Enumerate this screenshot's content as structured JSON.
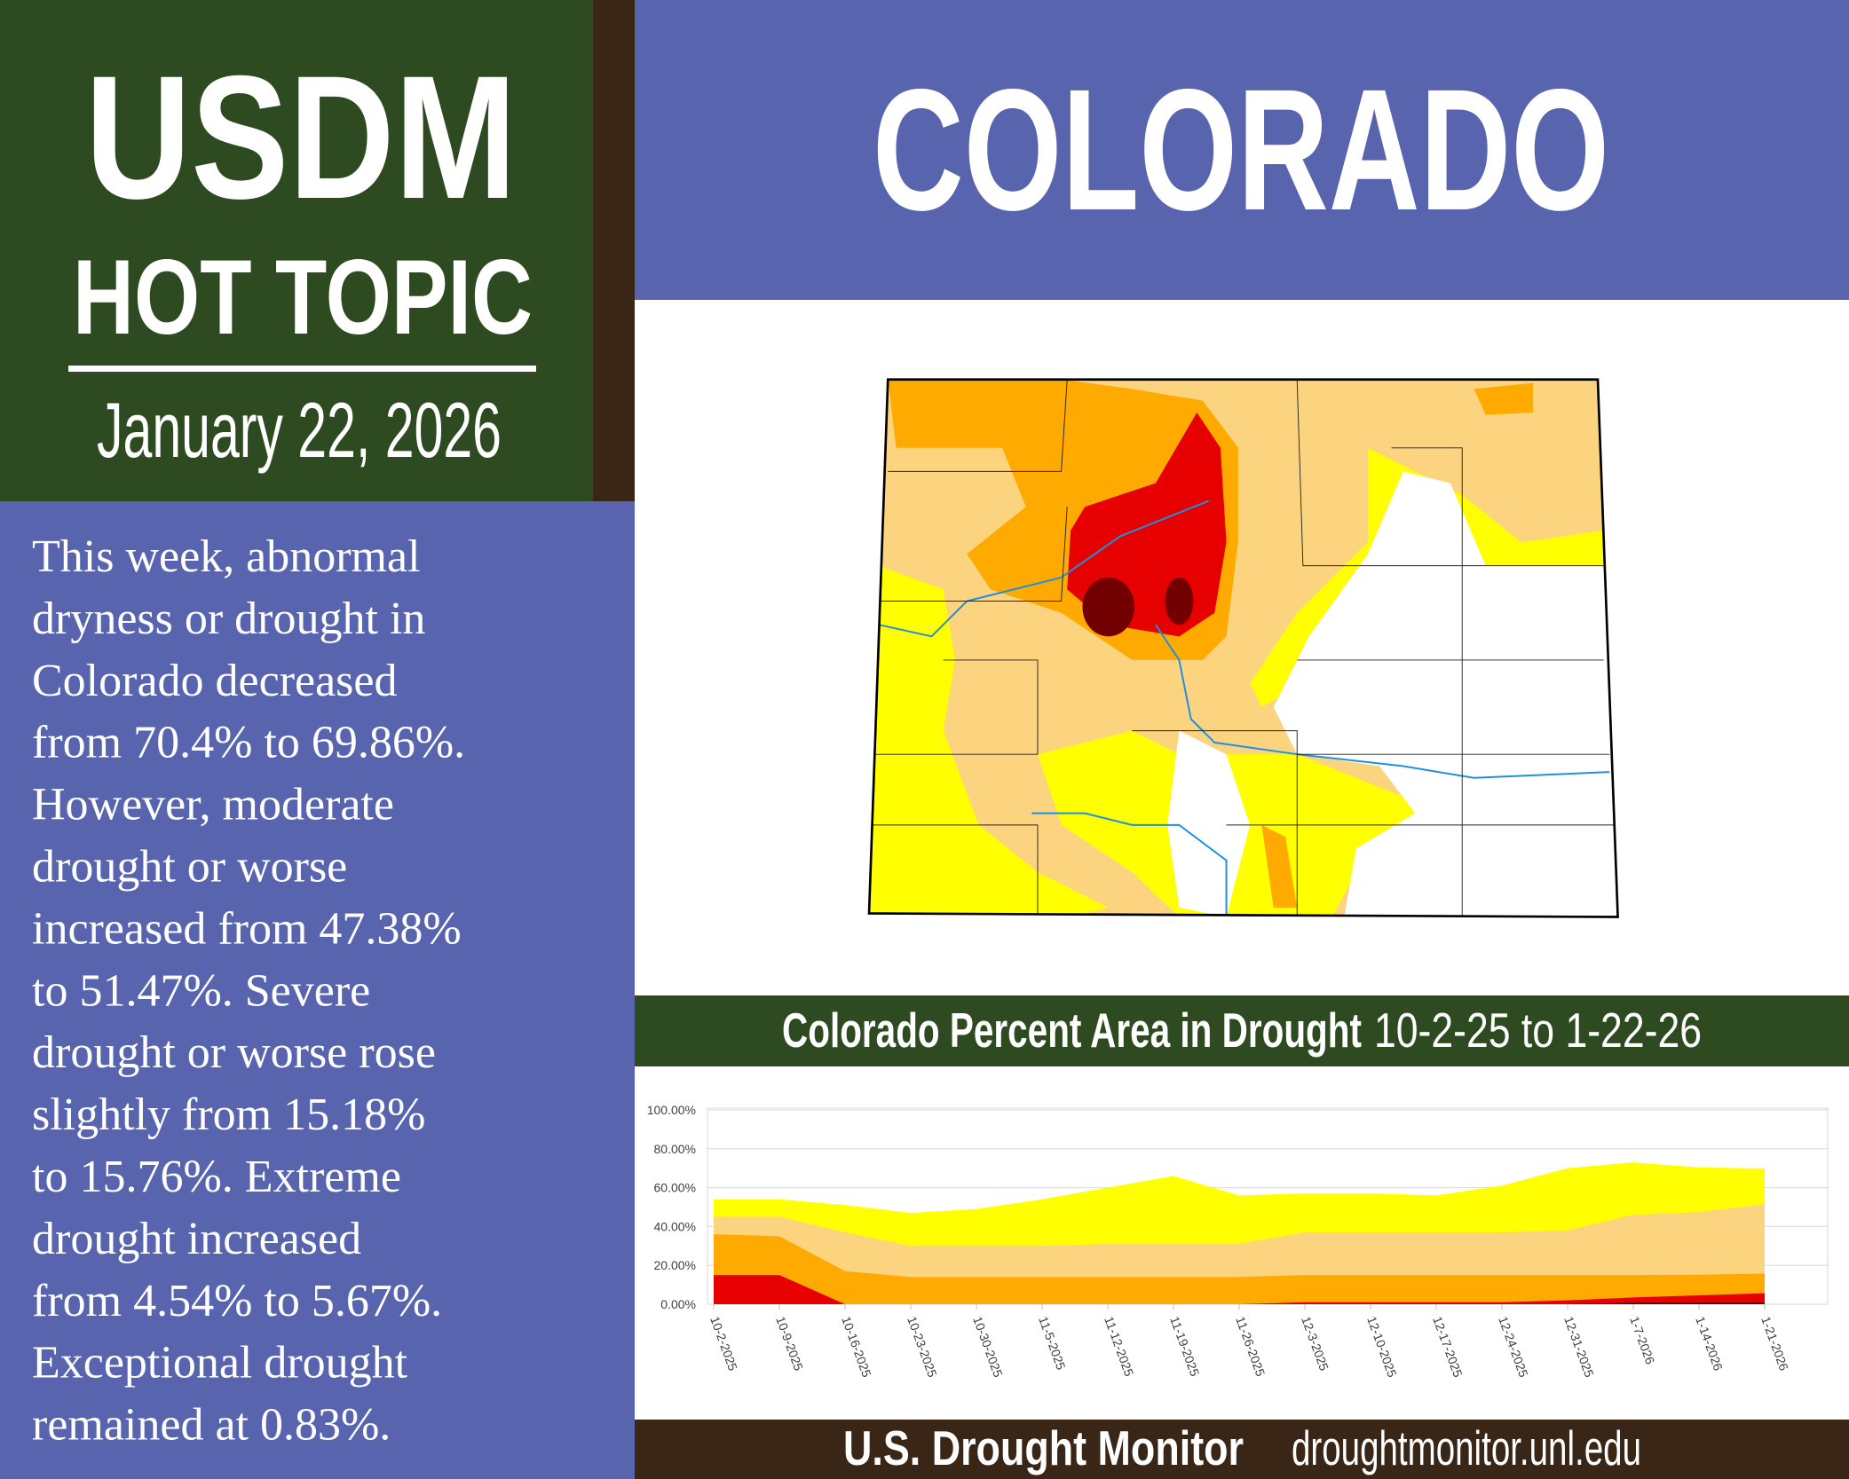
{
  "header": {
    "title": "USDM",
    "subtitle": "HOT TOPIC",
    "date": "January 22, 2026"
  },
  "state": "COLORADO",
  "body_lines": [
    "This week, abnormal",
    "dryness or drought in",
    "Colorado decreased",
    "from 70.4% to 69.86%.",
    "However, moderate",
    "drought or worse",
    "increased from 47.38%",
    "to 51.47%. Severe",
    "drought or worse rose",
    "slightly from 15.18%",
    "to 15.76%. Extreme",
    "drought increased",
    "from 4.54% to 5.67%.",
    "Exceptional drought",
    "remained at 0.83%."
  ],
  "chart_data": {
    "type": "area",
    "title": "Colorado Percent Area in Drought",
    "subtitle": "10-2-25 to 1-22-26",
    "categories": [
      "10-2-2025",
      "10-9-2025",
      "10-16-2025",
      "10-23-2025",
      "10-30-2025",
      "11-5-2025",
      "11-12-2025",
      "11-19-2025",
      "11-26-2025",
      "12-3-2025",
      "12-10-2025",
      "12-17-2025",
      "12-24-2025",
      "12-31-2025",
      "1-7-2026",
      "1-14-2026",
      "1-21-2026"
    ],
    "series": [
      {
        "color": "#ffff00",
        "values": [
          54,
          54,
          51,
          47,
          49,
          54,
          60,
          66,
          56,
          57,
          57,
          56,
          61,
          70,
          73,
          70.4,
          69.86
        ]
      },
      {
        "color": "#fcd37f",
        "values": [
          45,
          45,
          37,
          30,
          30,
          30,
          31,
          31,
          31,
          37,
          37,
          37,
          37,
          38,
          46,
          47.38,
          51.47
        ]
      },
      {
        "color": "#ffaa00",
        "values": [
          36,
          35,
          17,
          14,
          14,
          14,
          14,
          14,
          14,
          15,
          15,
          15,
          15,
          15,
          15,
          15.18,
          15.76
        ]
      },
      {
        "color": "#e60000",
        "values": [
          15,
          15,
          0,
          0,
          0,
          0,
          0,
          0,
          0,
          1,
          1,
          1,
          1,
          2,
          3.5,
          4.54,
          5.67
        ]
      },
      {
        "color": "#730000",
        "values": [
          0,
          0,
          0,
          0,
          0,
          0,
          0,
          0,
          0,
          0,
          0,
          0,
          0,
          0,
          0.83,
          0.83,
          0.83
        ]
      }
    ],
    "ylim": [
      0,
      100
    ],
    "yticks": [
      {
        "value": 0,
        "label": "0.00%"
      },
      {
        "value": 20,
        "label": "20.00%"
      },
      {
        "value": 40,
        "label": "40.00%"
      },
      {
        "value": 60,
        "label": "60.00%"
      },
      {
        "value": 80,
        "label": "80.00%"
      },
      {
        "value": 100,
        "label": "100.00%"
      }
    ],
    "grid": true
  },
  "footer": {
    "brand": "U.S. Drought Monitor",
    "url": "droughtmonitor.unl.edu"
  }
}
